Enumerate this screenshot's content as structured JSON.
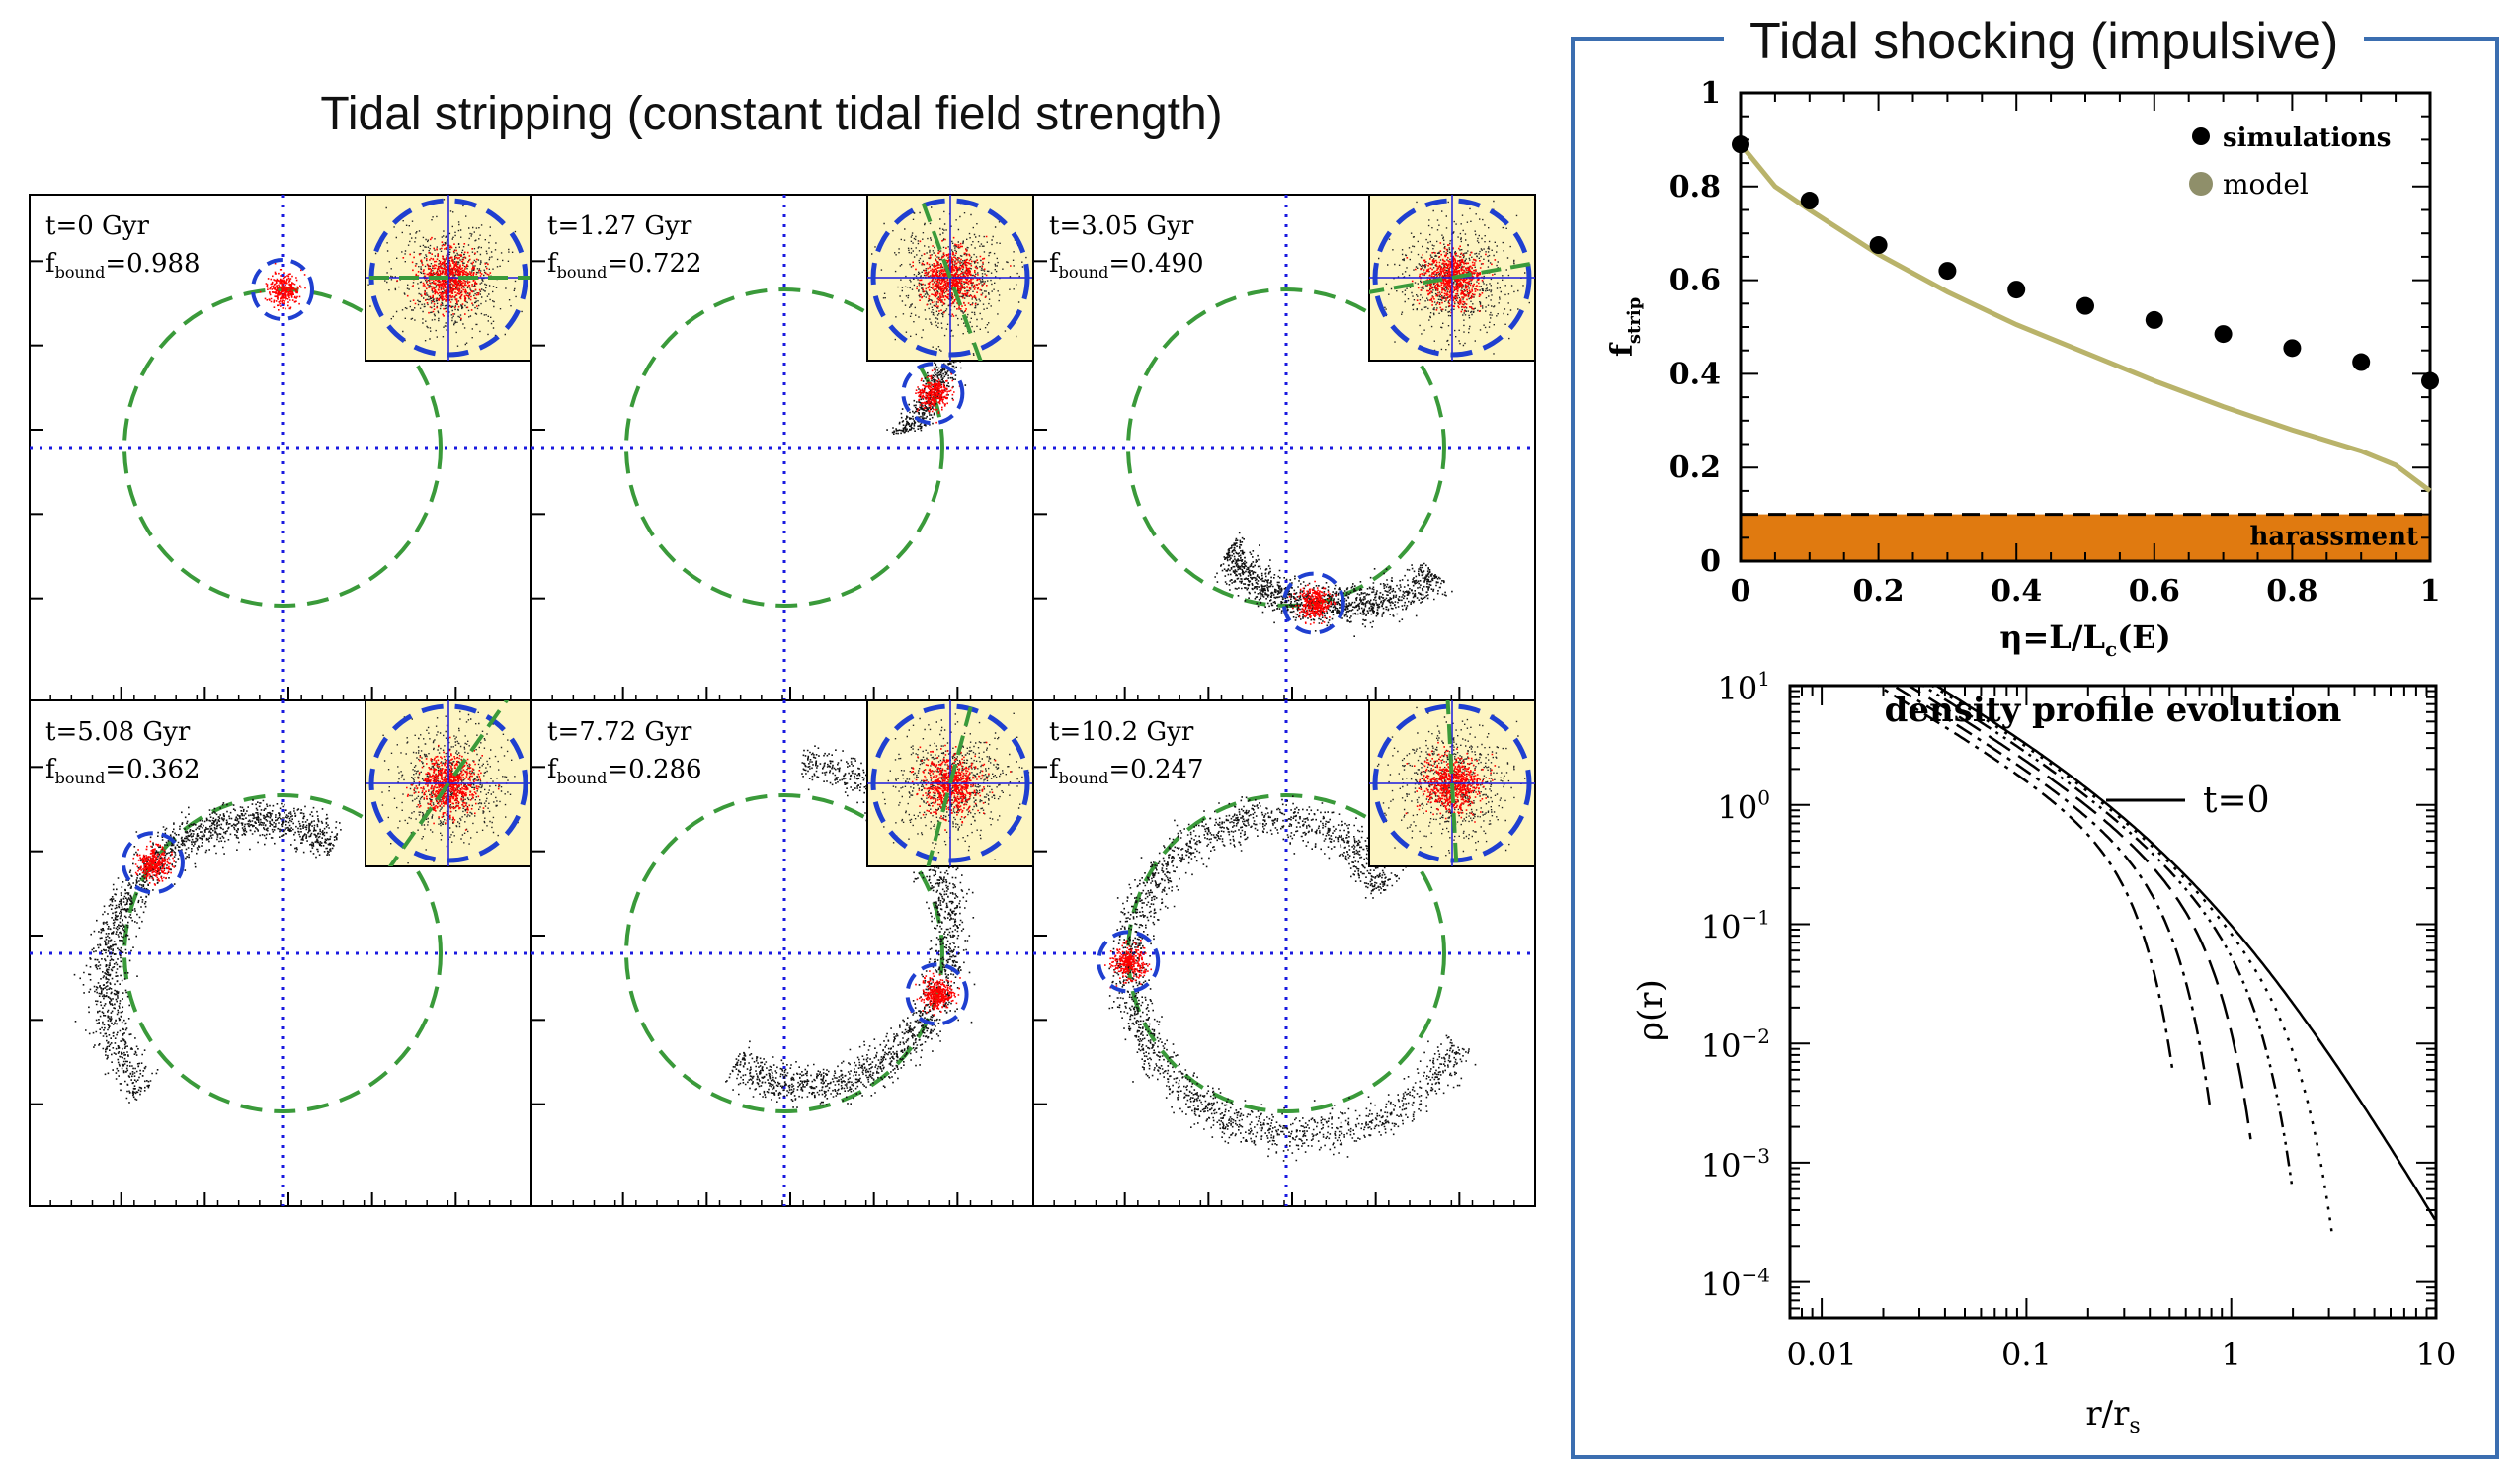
{
  "stripping": {
    "title": "Tidal stripping (constant tidal field strength)",
    "panels": [
      {
        "time": "t=0 Gyr",
        "fbound": "=0.988"
      },
      {
        "time": "t=1.27 Gyr",
        "fbound": "=0.722"
      },
      {
        "time": "t=3.05 Gyr",
        "fbound": "=0.490"
      },
      {
        "time": "t=5.08 Gyr",
        "fbound": "=0.362"
      },
      {
        "time": "t=7.72 Gyr",
        "fbound": "=0.286"
      },
      {
        "time": "t=10.2 Gyr",
        "fbound": "=0.247"
      }
    ],
    "fbound_label": "f",
    "fbound_sub": "bound"
  },
  "shocking": {
    "title": "Tidal shocking (impulsive)"
  },
  "colors": {
    "orbit": "#3a9a3a",
    "satellite_circle": "#1f3fd0",
    "axes_dotted": "#1a1ae0",
    "bound_particles": "#ff0000",
    "stream_particles": "#111111",
    "inset_bg": "#fdf5c2",
    "model_curve": "#b9b36a",
    "harassment_band": "#e07a10",
    "frame": "#3b6eb0"
  },
  "chart_data": [
    {
      "type": "scatter",
      "title": "Tidal shocking (impulsive)",
      "xlabel_main": "η=L/L",
      "xlabel_sub": "c",
      "xlabel_tail": "(E)",
      "ylabel_main": "f",
      "ylabel_sub": "strip",
      "xlim": [
        0,
        1
      ],
      "ylim": [
        0,
        1
      ],
      "xticks": [
        "0",
        "0.2",
        "0.4",
        "0.6",
        "0.8",
        "1"
      ],
      "yticks": [
        "0",
        "0.2",
        "0.4",
        "0.6",
        "0.8",
        "1"
      ],
      "legend": {
        "simulations": "simulations",
        "model": "model"
      },
      "series": [
        {
          "name": "simulations",
          "x": [
            0,
            0.1,
            0.2,
            0.3,
            0.4,
            0.5,
            0.6,
            0.7,
            0.8,
            0.9,
            1.0
          ],
          "y": [
            0.89,
            0.77,
            0.675,
            0.62,
            0.58,
            0.545,
            0.515,
            0.485,
            0.455,
            0.425,
            0.385
          ]
        },
        {
          "name": "model",
          "x": [
            0,
            0.05,
            0.1,
            0.2,
            0.3,
            0.4,
            0.5,
            0.6,
            0.7,
            0.8,
            0.9,
            0.95,
            1.0
          ],
          "y": [
            0.89,
            0.8,
            0.75,
            0.655,
            0.575,
            0.505,
            0.445,
            0.385,
            0.33,
            0.28,
            0.235,
            0.205,
            0.15
          ]
        }
      ],
      "band": {
        "label": "harassment",
        "y_range": [
          0,
          0.1
        ]
      }
    },
    {
      "type": "line",
      "title": "density profile evolution",
      "xlabel_main": "r/r",
      "xlabel_sub": "s",
      "ylabel": "ρ(r)",
      "xscale": "log",
      "yscale": "log",
      "xlim": [
        0.007,
        10
      ],
      "ylim": [
        5e-05,
        10
      ],
      "xticks": [
        "0.01",
        "0.1",
        "1",
        "10"
      ],
      "yticks": [
        {
          "base": "10",
          "exp": "1"
        },
        {
          "base": "10",
          "exp": "0"
        },
        {
          "base": "10",
          "exp": "−1"
        },
        {
          "base": "10",
          "exp": "−2"
        },
        {
          "base": "10",
          "exp": "−3"
        },
        {
          "base": "10",
          "exp": "−4"
        }
      ],
      "legend": "t=0",
      "series": [
        {
          "name": "t=0",
          "style": "solid",
          "norm": 1.0,
          "cutoff": null
        },
        {
          "name": "s1",
          "style": "dotted",
          "norm": 0.95,
          "cutoff": 3.0
        },
        {
          "name": "s2",
          "style": "dash-dot-dot",
          "norm": 0.85,
          "cutoff": 1.9
        },
        {
          "name": "s3",
          "style": "long-dash",
          "norm": 0.72,
          "cutoff": 1.2
        },
        {
          "name": "s4",
          "style": "dash-dot",
          "norm": 0.6,
          "cutoff": 0.75
        },
        {
          "name": "s5",
          "style": "dash-dot",
          "norm": 0.5,
          "cutoff": 0.5
        }
      ]
    }
  ]
}
